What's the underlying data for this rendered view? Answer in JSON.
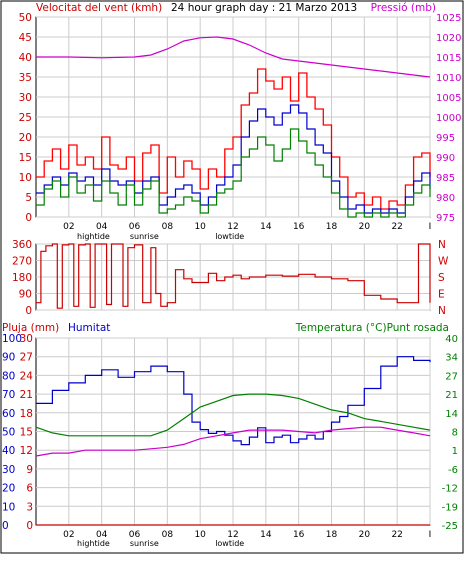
{
  "chart_data": [
    {
      "type": "line",
      "title": "24 hour graph day : 21 Marzo 2013",
      "left_label": "Velocitat del vent (kmh)",
      "right_label": "Pressió (mb)",
      "ylim": [
        0,
        50
      ],
      "y_ticks": [
        "0",
        "5",
        "10",
        "15",
        "20",
        "25",
        "30",
        "35",
        "40",
        "45",
        "50"
      ],
      "y2lim": [
        975,
        1025
      ],
      "y2_ticks": [
        "975",
        "980",
        "985",
        "990",
        "995",
        "1000",
        "1005",
        "1010",
        "1015",
        "1020",
        "1025"
      ],
      "xlim": [
        0,
        24
      ],
      "x_ticks": [
        "02",
        "04",
        "06",
        "08",
        "10",
        "12",
        "14",
        "16",
        "18",
        "20",
        "22",
        "I"
      ],
      "annotations": [
        {
          "x": 3.5,
          "label": "hightide"
        },
        {
          "x": 6.6,
          "label": "sunrise"
        },
        {
          "x": 11.8,
          "label": "lowtide"
        }
      ],
      "colors": {
        "gust": "#ff0000",
        "average": "#0000cc",
        "wind": "#008000",
        "pressure": "#cc00cc",
        "left_axis": "#cc0000",
        "right_axis": "#cc00cc"
      },
      "series": [
        {
          "key": "pressure",
          "axis": "right",
          "x": [
            0,
            1,
            2,
            3,
            4,
            5,
            6,
            7,
            8,
            9,
            10,
            11,
            12,
            13,
            14,
            15,
            16,
            17,
            18,
            19,
            20,
            21,
            22,
            23,
            24
          ],
          "values": [
            1015,
            1015,
            1015,
            1014.9,
            1014.8,
            1014.9,
            1015,
            1015.5,
            1017,
            1019,
            1019.8,
            1020,
            1019.5,
            1018,
            1016,
            1014.5,
            1014,
            1013.5,
            1013,
            1012.5,
            1012,
            1011.5,
            1011,
            1010.5,
            1010
          ]
        },
        {
          "key": "gust",
          "axis": "left",
          "x": [
            0,
            0.5,
            1,
            1.5,
            2,
            2.5,
            3,
            3.5,
            4,
            4.5,
            5,
            5.5,
            6,
            6.5,
            7,
            7.5,
            8,
            8.5,
            9,
            9.5,
            10,
            10.5,
            11,
            11.5,
            12,
            12.5,
            13,
            13.5,
            14,
            14.5,
            15,
            15.5,
            16,
            16.5,
            17,
            17.5,
            18,
            18.5,
            19,
            19.5,
            20,
            20.5,
            21,
            21.5,
            22,
            22.5,
            23,
            23.5,
            24
          ],
          "values": [
            10,
            14,
            17,
            12,
            18,
            13,
            15,
            12,
            20,
            13,
            12,
            15,
            9,
            16,
            18,
            6,
            15,
            10,
            14,
            12,
            7,
            12,
            10,
            17,
            20,
            28,
            31,
            37,
            34,
            32,
            35,
            29,
            36,
            30,
            27,
            23,
            15,
            10,
            5,
            6,
            3,
            5,
            2,
            4,
            3,
            8,
            15,
            16,
            10
          ]
        },
        {
          "key": "average",
          "axis": "left",
          "x": [
            0,
            0.5,
            1,
            1.5,
            2,
            2.5,
            3,
            3.5,
            4,
            4.5,
            5,
            5.5,
            6,
            6.5,
            7,
            7.5,
            8,
            8.5,
            9,
            9.5,
            10,
            10.5,
            11,
            11.5,
            12,
            12.5,
            13,
            13.5,
            14,
            14.5,
            15,
            15.5,
            16,
            16.5,
            17,
            17.5,
            18,
            18.5,
            19,
            19.5,
            20,
            20.5,
            21,
            21.5,
            22,
            22.5,
            23,
            23.5,
            24
          ],
          "values": [
            6,
            8,
            10,
            8,
            11,
            9,
            10,
            8,
            12,
            9,
            8,
            9,
            6,
            9,
            10,
            3,
            5,
            7,
            8,
            6,
            3,
            5,
            8,
            10,
            13,
            20,
            24,
            27,
            25,
            23,
            26,
            28,
            26,
            22,
            18,
            16,
            9,
            5,
            2,
            3,
            1,
            2,
            1,
            2,
            1,
            5,
            9,
            11,
            7
          ]
        },
        {
          "key": "wind",
          "axis": "left",
          "x": [
            0,
            0.5,
            1,
            1.5,
            2,
            2.5,
            3,
            3.5,
            4,
            4.5,
            5,
            5.5,
            6,
            6.5,
            7,
            7.5,
            8,
            8.5,
            9,
            9.5,
            10,
            10.5,
            11,
            11.5,
            12,
            12.5,
            13,
            13.5,
            14,
            14.5,
            15,
            15.5,
            16,
            16.5,
            17,
            17.5,
            18,
            18.5,
            19,
            19.5,
            20,
            20.5,
            21,
            21.5,
            22,
            22.5,
            23,
            23.5,
            24
          ],
          "values": [
            3,
            7,
            9,
            5,
            10,
            6,
            8,
            4,
            9,
            6,
            3,
            8,
            3,
            7,
            9,
            1,
            2,
            3,
            5,
            4,
            1,
            3,
            6,
            7,
            9,
            15,
            17,
            20,
            18,
            14,
            17,
            22,
            19,
            16,
            13,
            10,
            6,
            2,
            0,
            1,
            0,
            1,
            0,
            1,
            0,
            3,
            6,
            8,
            5
          ]
        }
      ]
    },
    {
      "type": "line",
      "ylim": [
        0,
        360
      ],
      "y_ticks": [
        "0",
        "90",
        "180",
        "270",
        "360"
      ],
      "direction_labels": [
        "N",
        "W",
        "S",
        "E",
        "N"
      ],
      "xlim": [
        0,
        24
      ],
      "colors": {
        "direction": "#cc0000"
      },
      "series": [
        {
          "key": "direction",
          "x": [
            0,
            0.3,
            0.6,
            1,
            1.3,
            1.6,
            2,
            2.3,
            2.6,
            3,
            3.3,
            3.6,
            4,
            4.3,
            4.6,
            5,
            5.3,
            5.6,
            6,
            6.5,
            7,
            7.3,
            7.6,
            8,
            8.5,
            9,
            9.5,
            10,
            10.5,
            11,
            11.5,
            12,
            12.5,
            13,
            14,
            15,
            16,
            17,
            18,
            19,
            20,
            21,
            22,
            23,
            23.3,
            24
          ],
          "values": [
            40,
            320,
            350,
            360,
            10,
            355,
            360,
            20,
            355,
            360,
            15,
            360,
            360,
            30,
            360,
            360,
            20,
            340,
            355,
            40,
            340,
            90,
            20,
            40,
            220,
            170,
            150,
            150,
            200,
            160,
            180,
            190,
            170,
            180,
            190,
            185,
            195,
            180,
            170,
            160,
            80,
            60,
            40,
            40,
            360,
            40
          ]
        }
      ]
    },
    {
      "type": "line",
      "left_label": "Pluja (mm)",
      "left2_label": "Humitat",
      "right_label": "Temperatura (°C)Punt rosada",
      "humidity_ylim": [
        0,
        100
      ],
      "humidity_ticks": [
        "0",
        "10",
        "20",
        "30",
        "40",
        "50",
        "60",
        "70",
        "80",
        "90",
        "100"
      ],
      "rain_ylim": [
        0,
        30
      ],
      "rain_ticks": [
        "0",
        "3",
        "6",
        "9",
        "12",
        "15",
        "18",
        "21",
        "24",
        "27",
        "30"
      ],
      "temp_ticks": [
        "-25",
        "-19",
        "-12",
        "-6",
        "1",
        "8",
        "14",
        "21",
        "27",
        "34",
        "40"
      ],
      "xlim": [
        0,
        24
      ],
      "x_ticks": [
        "02",
        "04",
        "06",
        "08",
        "10",
        "12",
        "14",
        "16",
        "18",
        "20",
        "22",
        "I"
      ],
      "annotations": [
        {
          "x": 3.5,
          "label": "hightide"
        },
        {
          "x": 6.6,
          "label": "sunrise"
        },
        {
          "x": 11.8,
          "label": "lowtide"
        }
      ],
      "colors": {
        "humidity": "#0000cc",
        "temperature": "#008000",
        "dewpoint": "#cc00cc",
        "rain": "#cc0000",
        "rain_axis": "#cc0000",
        "humidity_axis": "#0000cc",
        "temp_axis": "#008000"
      },
      "series": [
        {
          "key": "humidity",
          "x": [
            0,
            1,
            2,
            3,
            4,
            5,
            6,
            7,
            8,
            9,
            9.5,
            10,
            10.5,
            11,
            11.5,
            12,
            12.5,
            13,
            13.5,
            14,
            14.5,
            15,
            15.5,
            16,
            16.5,
            17,
            17.5,
            18,
            18.5,
            19,
            20,
            21,
            22,
            23,
            24
          ],
          "values": [
            65,
            72,
            76,
            80,
            83,
            79,
            82,
            85,
            82,
            70,
            55,
            51,
            49,
            50,
            48,
            45,
            43,
            47,
            52,
            44,
            47,
            48,
            44,
            46,
            48,
            46,
            50,
            55,
            58,
            64,
            73,
            85,
            90,
            88,
            87
          ]
        },
        {
          "key": "temperature",
          "x": [
            0,
            1,
            2,
            3,
            4,
            5,
            6,
            7,
            8,
            9,
            10,
            11,
            12,
            13,
            14,
            15,
            16,
            17,
            18,
            19,
            20,
            21,
            22,
            23,
            24
          ],
          "values": [
            9,
            7,
            6,
            6,
            6,
            6,
            6,
            6,
            8,
            12,
            16,
            18,
            20,
            20.5,
            20.5,
            20,
            19,
            17,
            15,
            14,
            12,
            11,
            10,
            9,
            8
          ]
        },
        {
          "key": "dewpoint",
          "x": [
            0,
            1,
            2,
            3,
            4,
            5,
            6,
            7,
            8,
            9,
            10,
            11,
            12,
            13,
            14,
            15,
            16,
            17,
            18,
            19,
            20,
            21,
            22,
            23,
            24
          ],
          "values": [
            -1,
            0,
            0,
            1,
            1,
            1,
            1,
            1.5,
            2,
            3,
            5,
            6,
            7,
            8,
            8,
            8,
            7.5,
            7,
            8,
            8.5,
            9,
            9,
            8,
            7,
            6
          ]
        },
        {
          "key": "rain",
          "x": [
            0,
            24
          ],
          "values": [
            0,
            0
          ]
        }
      ]
    }
  ]
}
